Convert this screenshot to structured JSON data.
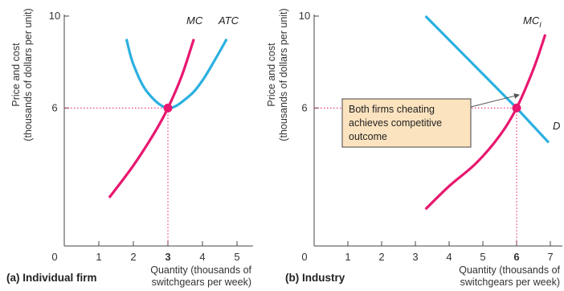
{
  "panels": [
    {
      "caption": "(a) Individual firm",
      "chart_data": {
        "type": "line",
        "title": "",
        "xlabel": [
          "Quantity (thousands of",
          "switchgears per week)"
        ],
        "ylabel": [
          "Price and cost",
          "(thousands of dollars per unit)"
        ],
        "xlim": [
          0,
          5.5
        ],
        "ylim": [
          0,
          10
        ],
        "x_ticks": [
          0,
          1,
          2,
          3,
          4,
          5
        ],
        "x_tick_labels": [
          "0",
          "1",
          "2",
          "3",
          "4",
          "5"
        ],
        "y_ticks": [
          6,
          10
        ],
        "y_tick_labels": [
          "6",
          "10"
        ],
        "grid": false,
        "series": [
          {
            "name": "MC",
            "color": "#e8176f",
            "points": [
              [
                1.3,
                2.1
              ],
              [
                2.0,
                3.5
              ],
              [
                2.6,
                4.9
              ],
              [
                3.0,
                6.0
              ],
              [
                3.4,
                7.4
              ],
              [
                3.75,
                9.0
              ]
            ]
          },
          {
            "name": "ATC",
            "color": "#2bb0e0",
            "points": [
              [
                1.8,
                9.0
              ],
              [
                2.0,
                7.9
              ],
              [
                2.4,
                6.7
              ],
              [
                3.0,
                6.0
              ],
              [
                3.6,
                6.5
              ],
              [
                4.0,
                7.2
              ],
              [
                4.4,
                8.2
              ],
              [
                4.7,
                9.0
              ]
            ]
          }
        ],
        "highlight": {
          "x": 3,
          "y": 6,
          "x_label": "3",
          "y_label": "6"
        }
      }
    },
    {
      "caption": "(b) Industry",
      "chart_data": {
        "type": "line",
        "title": "",
        "xlabel": [
          "Quantity (thousands of",
          "switchgears per week)"
        ],
        "ylabel": [
          "Price and cost",
          "(thousands of dollars per unit)"
        ],
        "xlim": [
          0,
          7.2
        ],
        "ylim": [
          0,
          10
        ],
        "x_ticks": [
          0,
          1,
          2,
          3,
          4,
          5,
          6,
          7
        ],
        "x_tick_labels": [
          "0",
          "1",
          "2",
          "3",
          "4",
          "5",
          "6",
          "7"
        ],
        "y_ticks": [
          6,
          10
        ],
        "y_tick_labels": [
          "6",
          "10"
        ],
        "grid": false,
        "series": [
          {
            "name": "D",
            "color": "#2bb0e0",
            "points": [
              [
                3.3,
                10.0
              ],
              [
                6.0,
                6.0
              ],
              [
                6.95,
                4.5
              ]
            ]
          },
          {
            "name": "MC",
            "subscript": "I",
            "color": "#e8176f",
            "points": [
              [
                3.3,
                1.6
              ],
              [
                4.0,
                2.6
              ],
              [
                4.8,
                3.6
              ],
              [
                5.5,
                4.8
              ],
              [
                6.0,
                6.0
              ],
              [
                6.5,
                7.7
              ],
              [
                6.85,
                9.2
              ]
            ]
          }
        ],
        "highlight": {
          "x": 6,
          "y": 6,
          "x_label": "6",
          "y_label": "6"
        },
        "annotation": {
          "lines": [
            "Both firms cheating",
            "achieves competitive",
            "outcome"
          ],
          "fill": "#fce3bf"
        }
      }
    }
  ]
}
